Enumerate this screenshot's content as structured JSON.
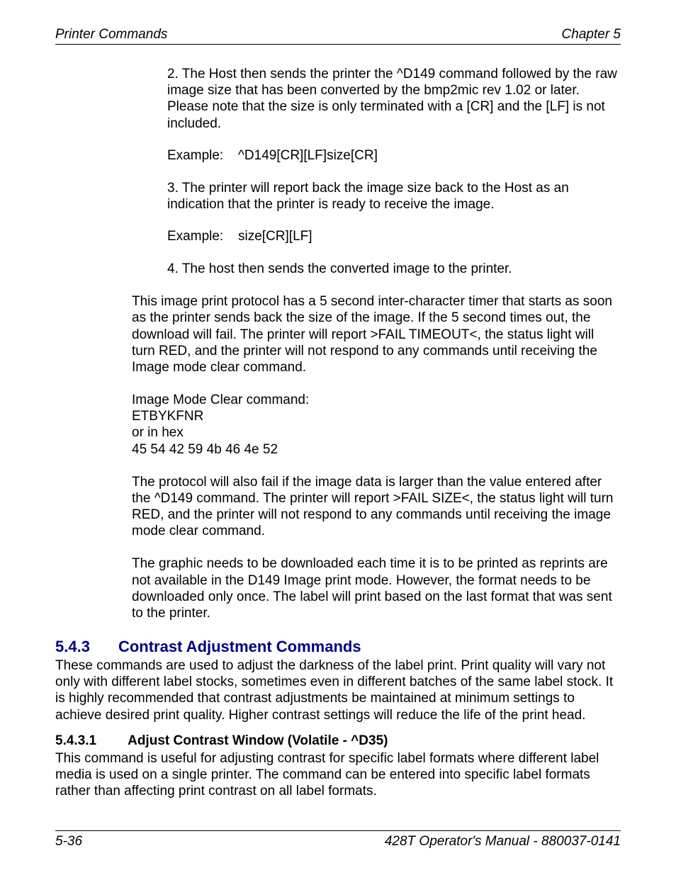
{
  "header": {
    "left": "Printer Commands",
    "right": "Chapter 5"
  },
  "content": {
    "p1": "2. The Host then sends the printer the ^D149 command followed by the raw image size that has been converted by the bmp2mic rev 1.02 or later.  Please note that the size is only terminated with a [CR] and the [LF] is not included.",
    "ex1_label": "Example:",
    "ex1_value": "^D149[CR][LF]size[CR]",
    "p2": "3. The printer will report back the image size back to the Host as an indication that the printer is ready to receive the image.",
    "ex2_label": "Example:",
    "ex2_value": "size[CR][LF]",
    "p3": "4. The host then sends the converted image to the printer.",
    "p4": "This image print protocol has a 5 second inter-character timer that starts as soon as the printer sends back the size of the image.  If the 5 second times out, the download will fail.  The printer will report >FAIL TIMEOUT<, the status light will turn RED, and the printer will not respond to any commands until receiving the Image mode clear command.",
    "clear_cmd_l1": "Image Mode Clear command:",
    "clear_cmd_l2": "ETBYKFNR",
    "clear_cmd_l3": "or in hex",
    "clear_cmd_l4": "45 54 42 59 4b 46 4e 52",
    "p5": "The protocol will also fail if the image data is larger than the value entered after the ^D149 command.  The printer will report >FAIL SIZE<, the status light will turn RED, and the printer will not respond to any commands until receiving the image mode clear command.",
    "p6": "The graphic needs to be downloaded each time it is to be printed as reprints are not available in the D149 Image print mode. However, the format needs to be downloaded only once. The label will print based on the last format that was sent to the printer."
  },
  "section": {
    "num": "5.4.3",
    "title": "Contrast Adjustment Commands",
    "body": "These commands are used to adjust the darkness of the label print.  Print quality will vary not only with different label stocks, sometimes even in different batches of the same label stock.  It is highly recommended that contrast adjustments be maintained at minimum settings to achieve desired print quality.  Higher contrast settings will reduce the life of the print head."
  },
  "subsection": {
    "num": "5.4.3.1",
    "title": "Adjust Contrast Window (Volatile - ^D35)",
    "body": "This command is useful for adjusting contrast for specific label formats where different label media is used on a single printer.  The command can be entered into specific label formats rather than affecting print contrast on all label formats."
  },
  "footer": {
    "left": "5-36",
    "right": "428T Operator's Manual - 880037-0141"
  },
  "colors": {
    "text": "#000000",
    "heading": "#000080",
    "background": "#ffffff",
    "rule": "#000000"
  },
  "fonts": {
    "body_size": 19,
    "heading_size": 22,
    "family": "Arial"
  }
}
